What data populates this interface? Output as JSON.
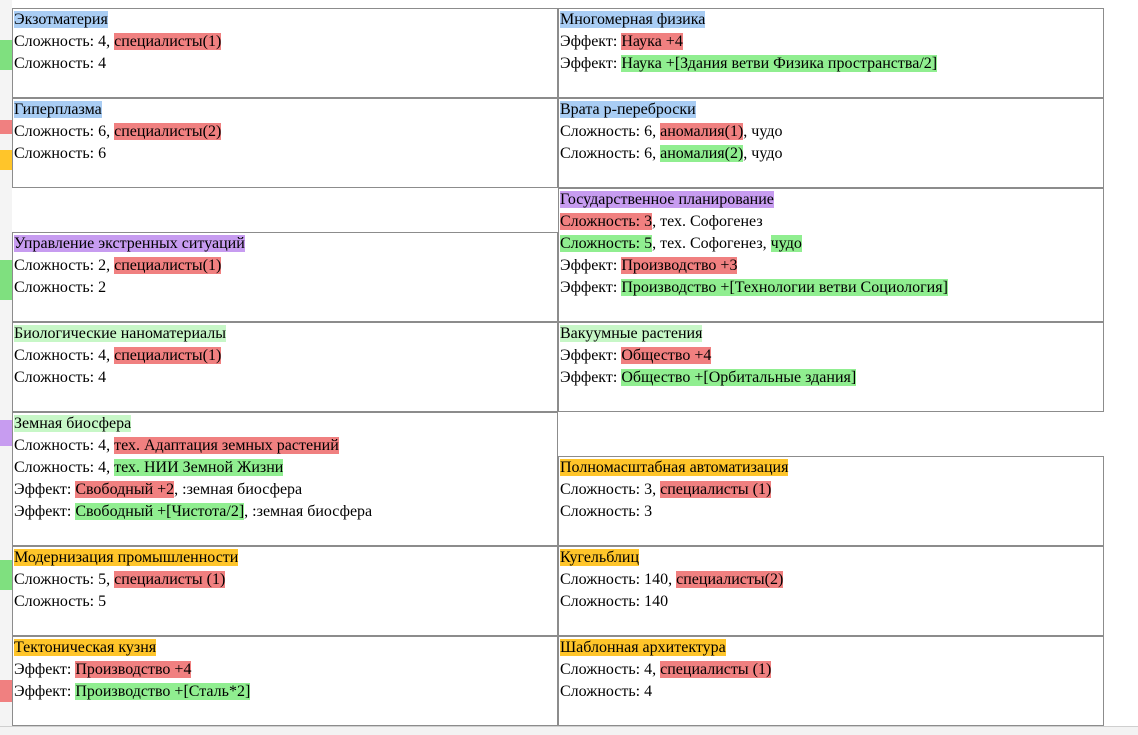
{
  "colors": {
    "blue": "#a9cdf4",
    "purple": "#c79cf0",
    "lightgreen": "#c7f7c7",
    "gold": "#ffc52a",
    "red": "#f08080",
    "green": "#90ee90"
  },
  "cards": [
    {
      "title": "Экзотматерия",
      "title_color": "blue",
      "lines": [
        [
          {
            "t": "Сложность: 4, "
          },
          {
            "t": "специалисты(1)",
            "c": "red"
          }
        ],
        [
          {
            "t": "Сложность: 4"
          }
        ]
      ]
    },
    {
      "title": "Многомерная физика",
      "title_color": "blue",
      "lines": [
        [
          {
            "t": "Эффект: "
          },
          {
            "t": "Наука +4",
            "c": "red"
          }
        ],
        [
          {
            "t": "Эффект: "
          },
          {
            "t": "Наука +[Здания ветви Физика пространства/2]",
            "c": "green"
          }
        ]
      ]
    },
    {
      "title": "Гиперплазма",
      "title_color": "blue",
      "lines": [
        [
          {
            "t": "Сложность: 6, "
          },
          {
            "t": "специалисты(2)",
            "c": "red"
          }
        ],
        [
          {
            "t": "Сложность: 6"
          }
        ]
      ]
    },
    {
      "title": "Врата р-переброски",
      "title_color": "blue",
      "lines": [
        [
          {
            "t": "Сложность: 6, "
          },
          {
            "t": "аномалия(1)",
            "c": "red"
          },
          {
            "t": ", чудо"
          }
        ],
        [
          {
            "t": "Сложность: 6, "
          },
          {
            "t": "аномалия(2)",
            "c": "green"
          },
          {
            "t": ", чудо"
          }
        ]
      ]
    },
    {
      "title": "Государственное планирование",
      "title_color": "purple",
      "lines": [
        [
          {
            "t": "Сложность: 3",
            "c": "red"
          },
          {
            "t": ", тех. Софогенез"
          }
        ],
        [
          {
            "t": "Сложность: 5",
            "c": "green"
          },
          {
            "t": ", тех. Софогенез, "
          },
          {
            "t": "чудо",
            "c": "green"
          }
        ],
        [
          {
            "t": "Эффект: "
          },
          {
            "t": "Производство +3",
            "c": "red"
          }
        ],
        [
          {
            "t": "Эффект: "
          },
          {
            "t": "Производство +[Технологии ветви Социология]",
            "c": "green"
          }
        ]
      ]
    },
    {
      "title": "Управление экстренных ситуаций",
      "title_color": "purple",
      "lines": [
        [
          {
            "t": "Сложность: 2, "
          },
          {
            "t": "специалисты(1)",
            "c": "red"
          }
        ],
        [
          {
            "t": "Сложность: 2"
          }
        ]
      ]
    },
    {
      "title": "Биологические наноматериалы",
      "title_color": "lightgreen",
      "lines": [
        [
          {
            "t": "Сложность: 4, "
          },
          {
            "t": "специалисты(1)",
            "c": "red"
          }
        ],
        [
          {
            "t": "Сложность: 4"
          }
        ]
      ]
    },
    {
      "title": "Вакуумные растения",
      "title_color": "lightgreen",
      "lines": [
        [
          {
            "t": "Эффект: "
          },
          {
            "t": "Общество +4",
            "c": "red"
          }
        ],
        [
          {
            "t": "Эффект: "
          },
          {
            "t": "Общество +[Орбитальные здания]",
            "c": "green"
          }
        ]
      ]
    },
    {
      "title": "Земная биосфера",
      "title_color": "lightgreen",
      "lines": [
        [
          {
            "t": "Сложность: 4, "
          },
          {
            "t": "тех. Адаптация земных растений",
            "c": "red"
          }
        ],
        [
          {
            "t": "Сложность: 4, "
          },
          {
            "t": "тех. НИИ Земной Жизни",
            "c": "green"
          }
        ],
        [
          {
            "t": "Эффект: "
          },
          {
            "t": "Свободный +2",
            "c": "red"
          },
          {
            "t": ", :земная биосфера"
          }
        ],
        [
          {
            "t": "Эффект: "
          },
          {
            "t": "Свободный +[Чистота/2]",
            "c": "green"
          },
          {
            "t": ", :земная биосфера"
          }
        ]
      ]
    },
    {
      "title": "Полномасштабная автоматизация",
      "title_color": "gold",
      "lines": [
        [
          {
            "t": "Сложность: 3, "
          },
          {
            "t": "специалисты (1)",
            "c": "red"
          }
        ],
        [
          {
            "t": "Сложность: 3"
          }
        ]
      ]
    },
    {
      "title": "Модернизация промышленности",
      "title_color": "gold",
      "lines": [
        [
          {
            "t": "Сложность: 5, "
          },
          {
            "t": "специалисты (1)",
            "c": "red"
          }
        ],
        [
          {
            "t": "Сложность: 5"
          }
        ]
      ]
    },
    {
      "title": "Кугельблиц",
      "title_color": "gold",
      "lines": [
        [
          {
            "t": "Сложность: 140, "
          },
          {
            "t": "специалисты(2)",
            "c": "red"
          }
        ],
        [
          {
            "t": "Сложность: 140"
          }
        ]
      ]
    },
    {
      "title": "Тектоническая кузня",
      "title_color": "gold",
      "lines": [
        [
          {
            "t": "Эффект: "
          },
          {
            "t": "Производство +4",
            "c": "red"
          }
        ],
        [
          {
            "t": "Эффект: "
          },
          {
            "t": "Производство +[Сталь*2]",
            "c": "green"
          }
        ]
      ]
    },
    {
      "title": "Шаблонная архитектура",
      "title_color": "gold",
      "lines": [
        [
          {
            "t": "Сложность: 4, "
          },
          {
            "t": "специалисты (1)",
            "c": "red"
          }
        ],
        [
          {
            "t": "Сложность: 4"
          }
        ]
      ]
    }
  ]
}
